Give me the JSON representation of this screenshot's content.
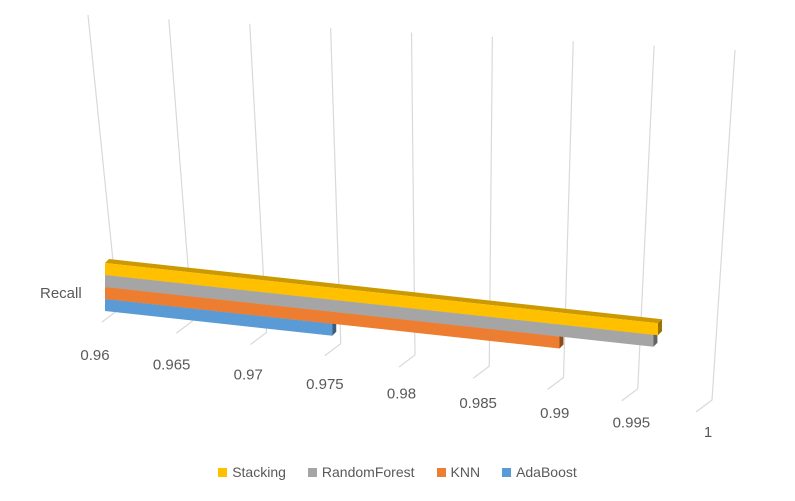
{
  "chart_data": {
    "type": "bar",
    "orientation": "horizontal",
    "style": "3d-clustered",
    "categories": [
      "Recall"
    ],
    "series": [
      {
        "name": "Stacking",
        "values": [
          0.9965
        ],
        "color": "#FFC000"
      },
      {
        "name": "RandomForest",
        "values": [
          0.9962
        ],
        "color": "#A5A5A5"
      },
      {
        "name": "KNN",
        "values": [
          0.99
        ],
        "color": "#ED7D31"
      },
      {
        "name": "AdaBoost",
        "values": [
          0.975
        ],
        "color": "#5B9BD5"
      }
    ],
    "xlim": [
      0.96,
      1
    ],
    "xticks": [
      "0.96",
      "0.965",
      "0.97",
      "0.975",
      "0.98",
      "0.985",
      "0.99",
      "0.995",
      "1"
    ],
    "grid": true,
    "legend": "bottom",
    "title": "",
    "xlabel": "",
    "ylabel": ""
  }
}
